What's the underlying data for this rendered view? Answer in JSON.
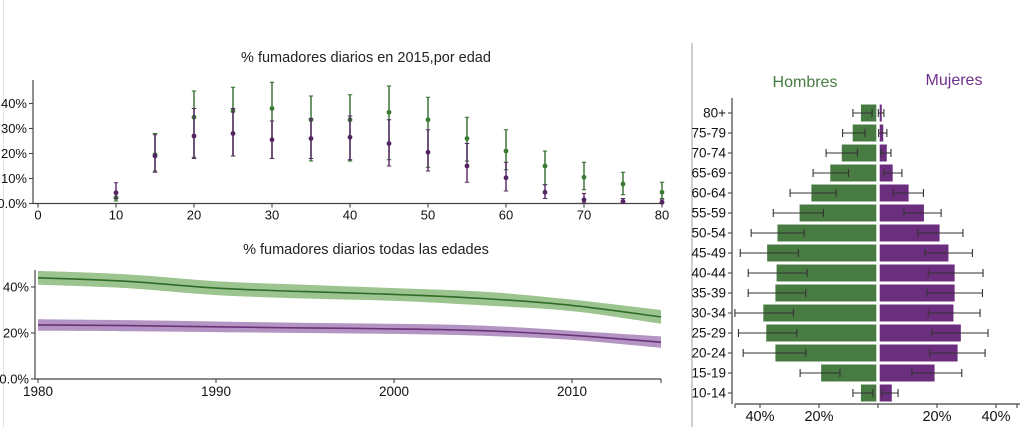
{
  "colors": {
    "green": "#477b41",
    "green_dark": "#2f6b29",
    "green_point": "#3a7a33",
    "green_band": "#9cc48e",
    "green_text": "#477b41",
    "purple": "#6b2d7d",
    "purple_dark": "#542563",
    "purple_line": "#6a3378",
    "purple_band": "#b394c3",
    "purple_text": "#70308a",
    "axis": "#444444",
    "tick_text": "#111111",
    "title_text": "#222222",
    "errorbar": "#333333",
    "divider": "#d0d0d0"
  },
  "chart_data": [
    {
      "id": "smokers_by_age_2015",
      "type": "scatter",
      "title": "% fumadores diarios en 2015,por edad",
      "xlabel": "",
      "ylabel": "",
      "xlim": [
        0,
        83
      ],
      "ylim": [
        0,
        49
      ],
      "grid": false,
      "x_tick_values": [
        0,
        10,
        20,
        30,
        40,
        50,
        60,
        70,
        80
      ],
      "x_tick_labels": [
        "0",
        "10",
        "20",
        "30",
        "40",
        "50",
        "60",
        "70",
        "80"
      ],
      "y_tick_values": [
        40,
        30,
        20,
        10,
        0
      ],
      "y_tick_labels": [
        "40%",
        "30%",
        "20%",
        "10%",
        "0.0%"
      ],
      "x": [
        10,
        15,
        20,
        25,
        30,
        35,
        40,
        45,
        50,
        55,
        60,
        65,
        70,
        75,
        80
      ],
      "series": [
        {
          "name": "hombres",
          "color_key": "green",
          "values": [
            2.3,
            19.5,
            34.5,
            37,
            38,
            33.5,
            33.5,
            36.5,
            33.5,
            26,
            21,
            15,
            10.5,
            7.8,
            4.5
          ],
          "lo": [
            1,
            13,
            18.5,
            19,
            18,
            17,
            17,
            17.5,
            14.5,
            17,
            13.5,
            7.5,
            5.5,
            3.5,
            2
          ],
          "hi": [
            4.5,
            28,
            45,
            46.5,
            48.5,
            43,
            43.5,
            47,
            42.5,
            34.5,
            29.5,
            21,
            16.5,
            12.5,
            8.5
          ]
        },
        {
          "name": "mujeres",
          "color_key": "purple",
          "values": [
            4.3,
            19,
            27,
            28,
            25.5,
            26,
            26.5,
            24,
            20.5,
            15,
            10.3,
            4.5,
            1.5,
            0.8,
            0.5
          ],
          "lo": [
            2,
            12.5,
            18,
            19,
            18,
            18,
            17.5,
            15,
            13,
            8.5,
            5,
            2,
            0.5,
            0.2,
            0.1
          ],
          "hi": [
            8.3,
            27.5,
            38,
            38,
            33,
            34,
            35,
            33.5,
            29.5,
            24,
            16.5,
            7.5,
            4,
            2,
            1.5
          ]
        }
      ]
    },
    {
      "id": "smokers_all_ages_trend",
      "type": "line",
      "title": "% fumadores diarios todas las edades",
      "xlabel": "",
      "ylabel": "",
      "xlim": [
        1980,
        2015
      ],
      "ylim": [
        0,
        47
      ],
      "grid": false,
      "x_tick_values": [
        1980,
        1990,
        2000,
        2010
      ],
      "x_tick_labels": [
        "1980",
        "1990",
        "2000",
        "2010"
      ],
      "y_tick_values": [
        40,
        20,
        0
      ],
      "y_tick_labels": [
        "40%",
        "20%",
        "0.0%"
      ],
      "x": [
        1980,
        1985,
        1990,
        1995,
        2000,
        2005,
        2010,
        2015
      ],
      "series": [
        {
          "name": "hombres",
          "color_key": "green",
          "values": [
            44,
            42.5,
            39.5,
            38,
            36.8,
            35,
            32,
            27
          ],
          "lo": [
            41,
            39.5,
            36.5,
            35,
            34,
            32,
            29.5,
            24
          ],
          "hi": [
            47,
            45.5,
            42.5,
            41,
            39.5,
            38,
            34.5,
            30
          ]
        },
        {
          "name": "mujeres",
          "color_key": "purple",
          "values": [
            23.5,
            23.2,
            22.7,
            22.2,
            21.8,
            21,
            19,
            16
          ],
          "lo": [
            21,
            20.8,
            20.4,
            20,
            19.6,
            18.8,
            17,
            13.5
          ],
          "hi": [
            26,
            25.6,
            25,
            24.4,
            24,
            23.2,
            21,
            18.5
          ]
        }
      ]
    },
    {
      "id": "smokers_pyramid_by_age_group",
      "type": "pyramid",
      "title": "",
      "xlim": [
        -48,
        48
      ],
      "x_tick_values": [
        -40,
        -20,
        0,
        20,
        40
      ],
      "x_tick_labels": [
        "40%",
        "20%",
        "",
        "20%",
        "40%"
      ],
      "age_groups": [
        "80+",
        "75-79",
        "70-74",
        "65-69",
        "60-64",
        "55-59",
        "50-54",
        "45-49",
        "40-44",
        "35-39",
        "30-34",
        "25-29",
        "20-24",
        "15-19",
        "10-14"
      ],
      "left": {
        "name": "Hombres",
        "color_key": "green",
        "values": [
          5.2,
          8,
          11.7,
          15.6,
          22,
          26,
          33.5,
          37,
          33.8,
          34.2,
          38.3,
          37.3,
          34.2,
          18.7,
          5.2
        ],
        "lo": [
          2,
          4.4,
          7,
          10,
          14.2,
          18.5,
          25,
          27,
          24,
          24.5,
          28.7,
          27.5,
          24.5,
          12.9,
          1.7
        ],
        "hi": [
          8.5,
          12,
          17.6,
          22,
          29.8,
          35.5,
          43,
          46.7,
          44,
          44,
          48.5,
          47.3,
          45.7,
          26.4,
          8.5
        ]
      },
      "right": {
        "name": "Mujeres",
        "color_key": "purple",
        "values": [
          0.7,
          1.2,
          2.4,
          4.4,
          9.8,
          15,
          20.3,
          23.3,
          25.4,
          25.4,
          25,
          27.5,
          26.4,
          18.6,
          4.1
        ],
        "lo": [
          0.1,
          0.2,
          1,
          2,
          5.2,
          8.8,
          13.5,
          16,
          17,
          16.6,
          17,
          18.2,
          17.6,
          11.5,
          1.3
        ],
        "hi": [
          2,
          3,
          4.4,
          8.1,
          15.4,
          21.4,
          28.8,
          32,
          35.6,
          35.4,
          34.6,
          37.3,
          36.3,
          28.4,
          6.8
        ]
      }
    }
  ]
}
